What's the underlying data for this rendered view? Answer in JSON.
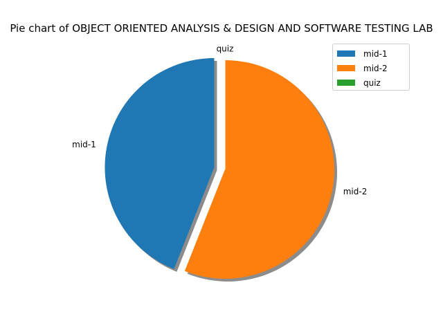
{
  "chart_data": {
    "type": "pie",
    "title": "Pie chart of OBJECT ORIENTED ANALYSIS & DESIGN AND SOFTWARE TESTING LAB",
    "series": [
      {
        "name": "mid-1",
        "value": 44,
        "color": "#1f77b4"
      },
      {
        "name": "mid-2",
        "value": 56,
        "color": "#ff7f0e"
      },
      {
        "name": "quiz",
        "value": 0,
        "color": "#2ca02c"
      }
    ],
    "start_angle_deg": 90,
    "exploded": [
      "mid-1"
    ],
    "shadow": true,
    "legend_position": "top-right"
  },
  "legend": {
    "items": [
      {
        "label": "mid-1",
        "color": "#1f77b4"
      },
      {
        "label": "mid-2",
        "color": "#ff7f0e"
      },
      {
        "label": "quiz",
        "color": "#2ca02c"
      }
    ]
  }
}
